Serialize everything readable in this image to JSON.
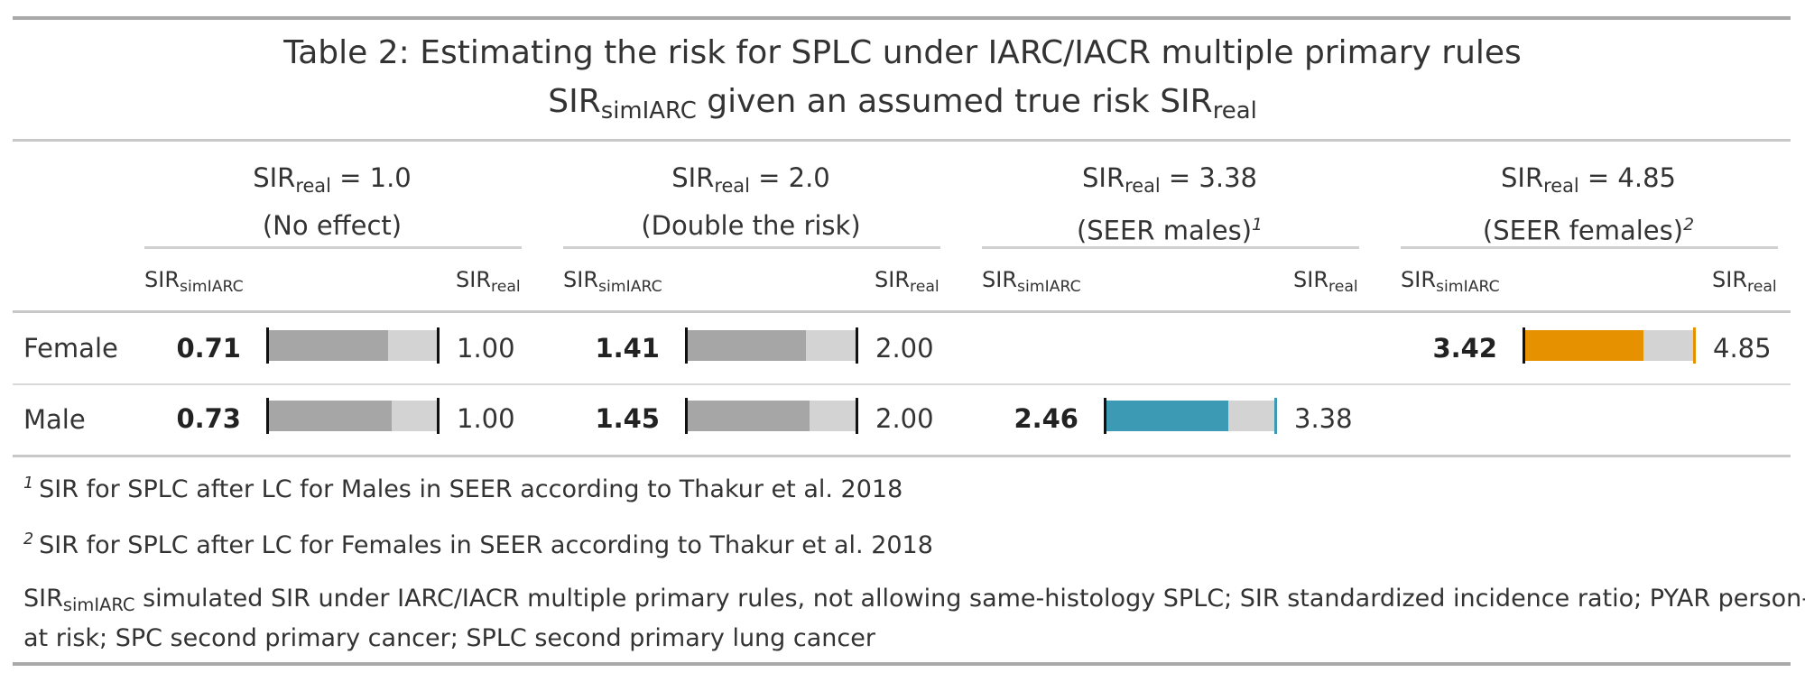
{
  "title": {
    "line1": "Table 2: Estimating the risk for SPLC under IARC/IACR multiple primary rules",
    "line2_pre": "SIR",
    "line2_sub": "simIARC",
    "line2_mid": " given an assumed true risk SIR",
    "line2_sub2": "real"
  },
  "spanners": [
    {
      "pre": "SIR",
      "sub": "real",
      "eq": " = 1.0",
      "desc": "(No effect)",
      "note": ""
    },
    {
      "pre": "SIR",
      "sub": "real",
      "eq": " = 2.0",
      "desc": "(Double the risk)",
      "note": ""
    },
    {
      "pre": "SIR",
      "sub": "real",
      "eq": " = 3.38",
      "desc": "(SEER males)",
      "note": "1"
    },
    {
      "pre": "SIR",
      "sub": "real",
      "eq": " = 4.85",
      "desc": "(SEER females)",
      "note": "2"
    }
  ],
  "col_headers": {
    "sim_pre": "SIR",
    "sim_sub": "simIARC",
    "real_pre": "SIR",
    "real_sub": "real"
  },
  "rows": [
    {
      "label": "Female",
      "cells": [
        {
          "sim": "0.71",
          "real": "1.00",
          "fraction": 0.71,
          "color": "#a6a6a6",
          "marker": "#111111"
        },
        {
          "sim": "1.41",
          "real": "2.00",
          "fraction": 0.705,
          "color": "#a6a6a6",
          "marker": "#111111"
        },
        null,
        {
          "sim": "3.42",
          "real": "4.85",
          "fraction": 0.705,
          "color": "#e69100",
          "marker": "#e69100"
        }
      ]
    },
    {
      "label": "Male",
      "cells": [
        {
          "sim": "0.73",
          "real": "1.00",
          "fraction": 0.73,
          "color": "#a6a6a6",
          "marker": "#111111"
        },
        {
          "sim": "1.45",
          "real": "2.00",
          "fraction": 0.725,
          "color": "#a6a6a6",
          "marker": "#111111"
        },
        {
          "sim": "2.46",
          "real": "3.38",
          "fraction": 0.728,
          "color": "#3c9ab5",
          "marker": "#3c9ab5"
        },
        null
      ]
    }
  ],
  "footnotes": {
    "n1_mark": "1",
    "n1_text": "SIR for SPLC after LC for Males in SEER according to Thakur et al. 2018",
    "n2_mark": "2",
    "n2_text": "SIR for SPLC after LC for Females in SEER according to Thakur et al. 2018",
    "abbr_pre": "SIR",
    "abbr_sub": "simIARC",
    "abbr_line1": " simulated SIR under IARC/IACR multiple primary rules, not allowing same-histology SPLC; SIR standardized incidence ratio; PYAR person-years",
    "abbr_line2": "at risk; SPC second primary cancer; SPLC second primary lung cancer"
  }
}
